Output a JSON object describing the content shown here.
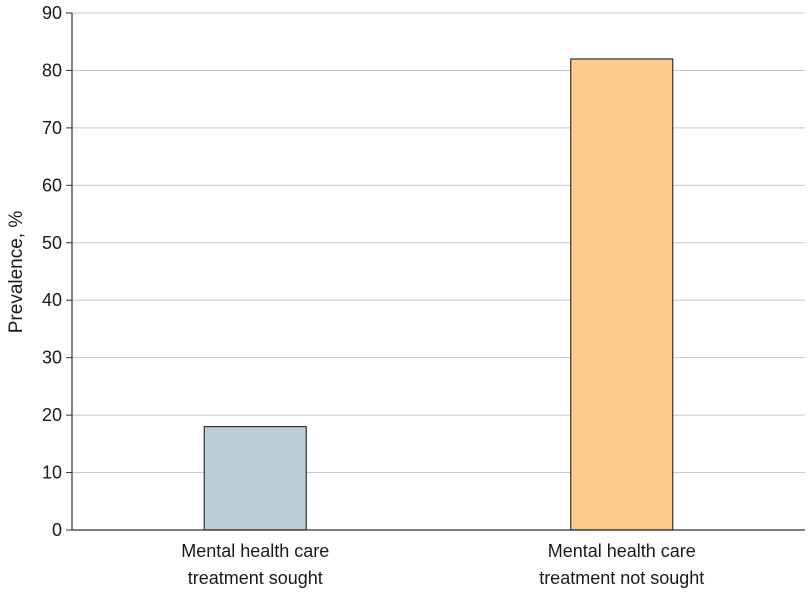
{
  "chart_data": {
    "type": "bar",
    "title": "",
    "xlabel": "",
    "ylabel": "Prevalence, %",
    "ylim": [
      0,
      90
    ],
    "yticks": [
      0,
      10,
      20,
      30,
      40,
      50,
      60,
      70,
      80,
      90
    ],
    "grid": true,
    "categories": [
      [
        "Mental health care",
        "treatment sought"
      ],
      [
        "Mental health care",
        "treatment not sought"
      ]
    ],
    "values": [
      18,
      82
    ],
    "colors": [
      "#bccdd7",
      "#fccb8d"
    ]
  }
}
